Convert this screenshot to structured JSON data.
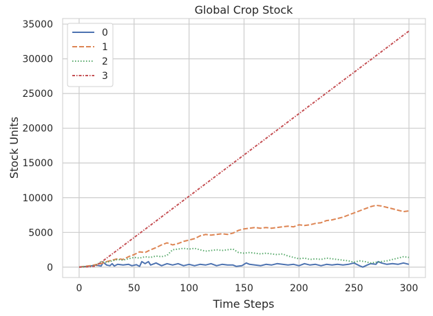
{
  "chart_data": {
    "type": "line",
    "title": "Global Crop Stock",
    "xlabel": "Time Steps",
    "ylabel": "Stock Units",
    "xlim": [
      -15,
      315
    ],
    "ylim": [
      -1500,
      35800
    ],
    "xticks": [
      0,
      50,
      100,
      150,
      200,
      250,
      300
    ],
    "yticks": [
      0,
      5000,
      10000,
      15000,
      20000,
      25000,
      30000,
      35000
    ],
    "grid": true,
    "legend_position": "top-left",
    "series": [
      {
        "name": "0",
        "color": "#4c72b0",
        "linestyle": "solid",
        "points": [
          [
            0,
            0
          ],
          [
            10,
            150
          ],
          [
            15,
            300
          ],
          [
            20,
            150
          ],
          [
            22,
            700
          ],
          [
            25,
            300
          ],
          [
            28,
            200
          ],
          [
            30,
            500
          ],
          [
            32,
            150
          ],
          [
            35,
            400
          ],
          [
            40,
            300
          ],
          [
            45,
            400
          ],
          [
            48,
            200
          ],
          [
            52,
            350
          ],
          [
            55,
            100
          ],
          [
            57,
            800
          ],
          [
            60,
            500
          ],
          [
            63,
            800
          ],
          [
            65,
            300
          ],
          [
            70,
            600
          ],
          [
            75,
            200
          ],
          [
            80,
            500
          ],
          [
            85,
            300
          ],
          [
            90,
            500
          ],
          [
            95,
            200
          ],
          [
            100,
            400
          ],
          [
            105,
            200
          ],
          [
            110,
            400
          ],
          [
            115,
            300
          ],
          [
            120,
            500
          ],
          [
            125,
            200
          ],
          [
            130,
            400
          ],
          [
            135,
            300
          ],
          [
            140,
            300
          ],
          [
            143,
            100
          ],
          [
            148,
            200
          ],
          [
            152,
            600
          ],
          [
            155,
            400
          ],
          [
            160,
            300
          ],
          [
            165,
            200
          ],
          [
            170,
            400
          ],
          [
            175,
            300
          ],
          [
            180,
            500
          ],
          [
            185,
            400
          ],
          [
            190,
            300
          ],
          [
            195,
            400
          ],
          [
            200,
            200
          ],
          [
            205,
            500
          ],
          [
            210,
            300
          ],
          [
            215,
            400
          ],
          [
            220,
            200
          ],
          [
            225,
            400
          ],
          [
            230,
            300
          ],
          [
            235,
            400
          ],
          [
            240,
            300
          ],
          [
            245,
            400
          ],
          [
            250,
            600
          ],
          [
            255,
            200
          ],
          [
            258,
            0
          ],
          [
            262,
            300
          ],
          [
            265,
            500
          ],
          [
            270,
            400
          ],
          [
            272,
            800
          ],
          [
            275,
            600
          ],
          [
            280,
            400
          ],
          [
            285,
            500
          ],
          [
            290,
            400
          ],
          [
            295,
            600
          ],
          [
            300,
            400
          ]
        ]
      },
      {
        "name": "1",
        "color": "#dd8452",
        "linestyle": "dashed",
        "points": [
          [
            0,
            0
          ],
          [
            10,
            200
          ],
          [
            20,
            500
          ],
          [
            25,
            800
          ],
          [
            30,
            1000
          ],
          [
            35,
            1200
          ],
          [
            40,
            1100
          ],
          [
            45,
            1500
          ],
          [
            50,
            1800
          ],
          [
            55,
            2200
          ],
          [
            60,
            2100
          ],
          [
            65,
            2500
          ],
          [
            70,
            2800
          ],
          [
            75,
            3200
          ],
          [
            80,
            3500
          ],
          [
            85,
            3200
          ],
          [
            90,
            3400
          ],
          [
            95,
            3700
          ],
          [
            100,
            3900
          ],
          [
            105,
            4100
          ],
          [
            110,
            4500
          ],
          [
            115,
            4700
          ],
          [
            120,
            4600
          ],
          [
            125,
            4700
          ],
          [
            130,
            4800
          ],
          [
            135,
            4700
          ],
          [
            140,
            4900
          ],
          [
            145,
            5300
          ],
          [
            150,
            5500
          ],
          [
            155,
            5600
          ],
          [
            160,
            5700
          ],
          [
            165,
            5600
          ],
          [
            170,
            5700
          ],
          [
            175,
            5600
          ],
          [
            180,
            5700
          ],
          [
            185,
            5800
          ],
          [
            190,
            5900
          ],
          [
            195,
            5800
          ],
          [
            200,
            6100
          ],
          [
            205,
            6000
          ],
          [
            210,
            6100
          ],
          [
            215,
            6300
          ],
          [
            220,
            6400
          ],
          [
            225,
            6700
          ],
          [
            230,
            6800
          ],
          [
            235,
            7000
          ],
          [
            240,
            7200
          ],
          [
            245,
            7500
          ],
          [
            250,
            7800
          ],
          [
            255,
            8100
          ],
          [
            260,
            8400
          ],
          [
            265,
            8700
          ],
          [
            270,
            8900
          ],
          [
            275,
            8800
          ],
          [
            280,
            8600
          ],
          [
            285,
            8400
          ],
          [
            290,
            8200
          ],
          [
            295,
            8000
          ],
          [
            300,
            8100
          ]
        ]
      },
      {
        "name": "2",
        "color": "#55a868",
        "linestyle": "dotted",
        "points": [
          [
            0,
            0
          ],
          [
            10,
            100
          ],
          [
            15,
            250
          ],
          [
            20,
            800
          ],
          [
            25,
            700
          ],
          [
            30,
            900
          ],
          [
            35,
            1100
          ],
          [
            40,
            1000
          ],
          [
            45,
            1200
          ],
          [
            50,
            1400
          ],
          [
            55,
            1300
          ],
          [
            60,
            1500
          ],
          [
            65,
            1400
          ],
          [
            70,
            1600
          ],
          [
            75,
            1500
          ],
          [
            80,
            1700
          ],
          [
            85,
            2500
          ],
          [
            90,
            2600
          ],
          [
            95,
            2700
          ],
          [
            100,
            2600
          ],
          [
            105,
            2700
          ],
          [
            110,
            2500
          ],
          [
            115,
            2300
          ],
          [
            120,
            2400
          ],
          [
            125,
            2500
          ],
          [
            130,
            2400
          ],
          [
            135,
            2500
          ],
          [
            140,
            2600
          ],
          [
            145,
            2100
          ],
          [
            150,
            2000
          ],
          [
            155,
            2100
          ],
          [
            160,
            2000
          ],
          [
            165,
            1900
          ],
          [
            170,
            2000
          ],
          [
            175,
            1900
          ],
          [
            180,
            1800
          ],
          [
            185,
            1900
          ],
          [
            190,
            1600
          ],
          [
            195,
            1400
          ],
          [
            200,
            1200
          ],
          [
            205,
            1300
          ],
          [
            210,
            1100
          ],
          [
            215,
            1200
          ],
          [
            220,
            1100
          ],
          [
            225,
            1300
          ],
          [
            230,
            1200
          ],
          [
            235,
            1100
          ],
          [
            240,
            1000
          ],
          [
            245,
            900
          ],
          [
            250,
            700
          ],
          [
            255,
            900
          ],
          [
            260,
            800
          ],
          [
            265,
            600
          ],
          [
            270,
            700
          ],
          [
            275,
            800
          ],
          [
            280,
            900
          ],
          [
            285,
            1100
          ],
          [
            290,
            1300
          ],
          [
            295,
            1500
          ],
          [
            300,
            1400
          ]
        ]
      },
      {
        "name": "3",
        "color": "#c44e52",
        "linestyle": "dashdot",
        "points": [
          [
            0,
            0
          ],
          [
            10,
            50
          ],
          [
            15,
            150
          ],
          [
            20,
            700
          ],
          [
            300,
            34000
          ]
        ]
      }
    ]
  }
}
